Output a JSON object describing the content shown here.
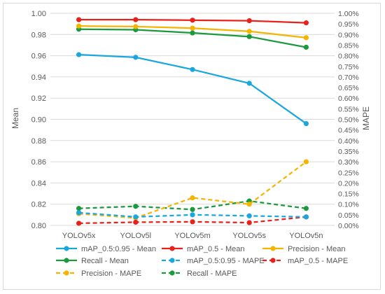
{
  "chart_data": {
    "type": "line",
    "categories": [
      "YOLOv5x",
      "YOLOv5l",
      "YOLOv5m",
      "YOLOv5s",
      "YOLOv5n"
    ],
    "ylabel": "Mean",
    "y2label": "MAPE",
    "ylim": [
      0.8,
      1.0
    ],
    "y2lim": [
      0.0,
      1.0
    ],
    "yticks": [
      "0.80",
      "0.82",
      "0.84",
      "0.86",
      "0.88",
      "0.90",
      "0.92",
      "0.94",
      "0.96",
      "0.98",
      "1.00"
    ],
    "y2ticks": [
      "0.00%",
      "0.05%",
      "0.10%",
      "0.15%",
      "0.20%",
      "0.25%",
      "0.30%",
      "0.35%",
      "0.40%",
      "0.45%",
      "0.50%",
      "0.55%",
      "0.60%",
      "0.65%",
      "0.70%",
      "0.75%",
      "0.80%",
      "0.85%",
      "0.90%",
      "0.95%",
      "1.00%"
    ],
    "grid": true,
    "legend_position": "bottom",
    "series": [
      {
        "name": "mAP_0.5:0.95 - Mean",
        "axis": "left",
        "color": "#1aa7e0",
        "dash": false,
        "values": [
          0.961,
          0.9585,
          0.947,
          0.934,
          0.896
        ]
      },
      {
        "name": "mAP_0.5 - Mean",
        "axis": "left",
        "color": "#e8221b",
        "dash": false,
        "values": [
          0.994,
          0.994,
          0.9935,
          0.993,
          0.991
        ]
      },
      {
        "name": "Precision - Mean",
        "axis": "left",
        "color": "#f5b400",
        "dash": false,
        "values": [
          0.988,
          0.9875,
          0.986,
          0.983,
          0.977
        ]
      },
      {
        "name": "Recall - Mean",
        "axis": "left",
        "color": "#1a9a3c",
        "dash": false,
        "values": [
          0.985,
          0.9845,
          0.9815,
          0.978,
          0.968
        ]
      },
      {
        "name": "mAP_0.5:0.95 - MAPE",
        "axis": "right",
        "color": "#1aa7e0",
        "dash": true,
        "values": [
          0.06,
          0.04,
          0.05,
          0.045,
          0.04
        ]
      },
      {
        "name": "mAP_0.5 - MAPE",
        "axis": "right",
        "color": "#e8221b",
        "dash": true,
        "values": [
          0.01,
          0.015,
          0.017,
          0.013,
          0.04
        ]
      },
      {
        "name": "Precision - MAPE",
        "axis": "right",
        "color": "#f5b400",
        "dash": true,
        "values": [
          0.055,
          0.035,
          0.13,
          0.1,
          0.3
        ]
      },
      {
        "name": "Recall - MAPE",
        "axis": "right",
        "color": "#1a9a3c",
        "dash": true,
        "values": [
          0.08,
          0.09,
          0.075,
          0.115,
          0.08
        ]
      }
    ]
  }
}
